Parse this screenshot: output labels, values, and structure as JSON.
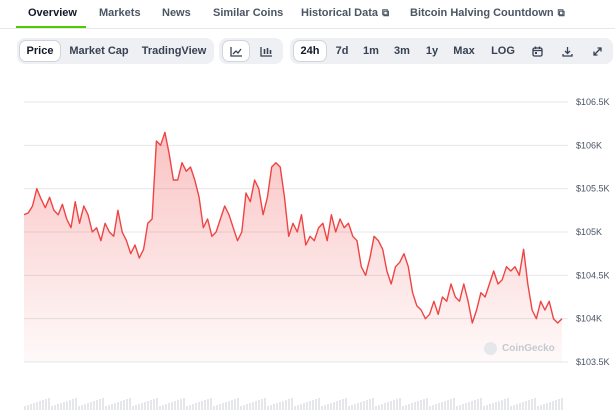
{
  "nav": {
    "tabs": [
      {
        "label": "Overview",
        "active": true
      },
      {
        "label": "Markets"
      },
      {
        "label": "News"
      },
      {
        "label": "Similar Coins"
      },
      {
        "label": "Historical Data",
        "external": true
      },
      {
        "label": "Bitcoin Halving Countdown",
        "external": true
      }
    ]
  },
  "toolbar": {
    "chart_types": [
      "Price",
      "Market Cap",
      "TradingView"
    ],
    "ranges": [
      "24h",
      "7d",
      "1m",
      "3m",
      "1y",
      "Max",
      "LOG"
    ]
  },
  "chart": {
    "watermark": "CoinGecko",
    "line_color": "#ef4444",
    "y_ticks": [
      "$106.5K",
      "$106K",
      "$105.5K",
      "$105K",
      "$104.5K",
      "$104K",
      "$103.5K"
    ]
  },
  "chart_data": {
    "type": "area",
    "y_ticks": [
      106500,
      106000,
      105500,
      105000,
      104500,
      104000,
      103500
    ],
    "ylim": [
      103500,
      106500
    ],
    "values": [
      105200,
      105220,
      105300,
      105500,
      105380,
      105280,
      105400,
      105250,
      105200,
      105320,
      105150,
      105050,
      105350,
      105100,
      105300,
      105200,
      105000,
      105050,
      104900,
      105100,
      105000,
      104950,
      105250,
      105000,
      104900,
      104750,
      104850,
      104700,
      104800,
      105100,
      105150,
      106050,
      106000,
      106150,
      105900,
      105600,
      105600,
      105800,
      105700,
      105750,
      105600,
      105400,
      105050,
      105150,
      104950,
      105000,
      105150,
      105300,
      105200,
      105050,
      104900,
      105000,
      105450,
      105350,
      105600,
      105500,
      105200,
      105400,
      105750,
      105800,
      105750,
      105400,
      104950,
      105100,
      105000,
      105200,
      104850,
      104950,
      104900,
      105050,
      105100,
      104900,
      105200,
      105000,
      105150,
      105050,
      105100,
      104950,
      104900,
      104600,
      104500,
      104700,
      104950,
      104900,
      104800,
      104550,
      104400,
      104600,
      104650,
      104750,
      104600,
      104300,
      104150,
      104100,
      104000,
      104050,
      104200,
      104050,
      104250,
      104200,
      104400,
      104250,
      104200,
      104400,
      104200,
      103950,
      104100,
      104300,
      104250,
      104400,
      104550,
      104400,
      104450,
      104600,
      104550,
      104600,
      104500,
      104800,
      104400,
      104100,
      104000,
      104200,
      104100,
      104200,
      104000,
      103950,
      104000
    ]
  }
}
